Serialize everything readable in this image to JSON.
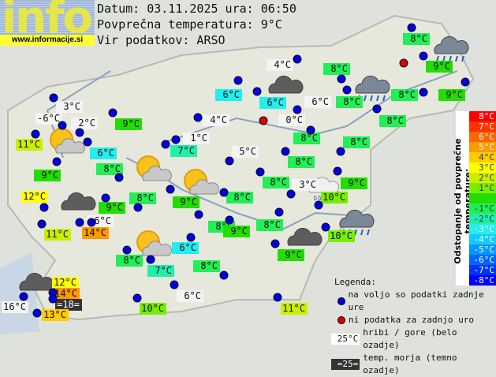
{
  "logo": {
    "text": "info",
    "url": "www.informacije.si"
  },
  "header": {
    "date_line": "Datum: 03.11.2025 ura: 06:50",
    "avg_line": "Povprečna temperatura: 9°C",
    "source_line": "Vir podatkov: ARSO"
  },
  "average_temperature": 9,
  "stations": [
    {
      "t": "3°C",
      "kind": "hill"
    },
    {
      "t": "-6°C",
      "kind": "hill"
    },
    {
      "t": "2°C",
      "kind": "hill"
    },
    {
      "t": "11°C"
    },
    {
      "t": "6°C"
    },
    {
      "t": "9°C"
    },
    {
      "t": "8°C"
    },
    {
      "t": "12°C"
    },
    {
      "t": "9°C"
    },
    {
      "t": "9°C"
    },
    {
      "t": "8°C"
    },
    {
      "t": "6°C",
      "kind": "hill"
    },
    {
      "t": "14°C"
    },
    {
      "t": "11°C"
    },
    {
      "t": "8°C"
    },
    {
      "t": "6°C"
    },
    {
      "t": "7°C"
    },
    {
      "t": "8°C"
    },
    {
      "t": "12°C"
    },
    {
      "t": "14°C"
    },
    {
      "t": "=18=",
      "kind": "sea"
    },
    {
      "t": "16°C",
      "kind": "hill"
    },
    {
      "t": "13°C"
    },
    {
      "t": "10°C"
    },
    {
      "t": "6°C",
      "kind": "hill"
    },
    {
      "t": "11°C"
    },
    {
      "t": "4°C",
      "kind": "hill"
    },
    {
      "t": "6°C"
    },
    {
      "t": "6°C"
    },
    {
      "t": "4°C",
      "kind": "hill"
    },
    {
      "t": "0°C",
      "kind": "hill",
      "missing": true
    },
    {
      "t": "6°C",
      "kind": "hill"
    },
    {
      "t": "1°C",
      "kind": "hill"
    },
    {
      "t": "7°C"
    },
    {
      "t": "5°C",
      "kind": "hill"
    },
    {
      "t": "8°C"
    },
    {
      "t": "8°C"
    },
    {
      "t": "8°C"
    },
    {
      "t": "3°C",
      "kind": "hill"
    },
    {
      "t": "9°C"
    },
    {
      "t": "8°C"
    },
    {
      "t": "8°C"
    },
    {
      "t": "9°C"
    },
    {
      "t": "8°C"
    },
    {
      "t": "9°C"
    },
    {
      "t": "10°C"
    },
    {
      "t": "9°C"
    },
    {
      "t": "10°C"
    },
    {
      "t": "8°C"
    },
    {
      "t": "8°C"
    },
    {
      "t": "8°C"
    },
    {
      "t": "8°C"
    },
    {
      "t": "8°C"
    },
    {
      "t": "9°C"
    },
    {
      "t": "9°C"
    },
    {
      "t": "8°C"
    }
  ],
  "weather_icons": [
    "partly-cloudy-icon",
    "partly-cloudy-icon",
    "partly-cloudy-icon",
    "partly-cloudy-icon",
    "cloud-icon",
    "cloud-icon",
    "cloud-icon",
    "cloud-icon",
    "rain-cloud-icon",
    "rain-cloud-icon",
    "light-rain-icon",
    "rain-cloud-icon"
  ],
  "colorbar": {
    "title": "Odstopanje od povprečne temperature:",
    "rows": [
      {
        "l": "8°C",
        "c": "#ff0000"
      },
      {
        "l": "7°C",
        "c": "#ff3300"
      },
      {
        "l": "6°C",
        "c": "#ff6600"
      },
      {
        "l": "5°C",
        "c": "#ff9900"
      },
      {
        "l": "4°C",
        "c": "#ffcc00"
      },
      {
        "l": "3°C",
        "c": "#ffff00"
      },
      {
        "l": "2°C",
        "c": "#ccee00"
      },
      {
        "l": "1°C",
        "c": "#77ee00"
      },
      {
        "l": "",
        "c": "#22dd00"
      },
      {
        "l": "-1°C",
        "c": "#22ee55"
      },
      {
        "l": "-2°C",
        "c": "#22eeaa"
      },
      {
        "l": "-3°C",
        "c": "#22eeee"
      },
      {
        "l": "-4°C",
        "c": "#11ccff"
      },
      {
        "l": "-5°C",
        "c": "#0099ff"
      },
      {
        "l": "-6°C",
        "c": "#0066ff"
      },
      {
        "l": "-7°C",
        "c": "#0033ff"
      },
      {
        "l": "-8°C",
        "c": "#0000ff"
      }
    ]
  },
  "legend": {
    "title": "Legenda:",
    "available": "na voljo so podatki zadnje ure",
    "missing": "ni podatka za zadnjo uro",
    "hill_sample": "25°C",
    "hill": "hribi / gore (belo ozadje)",
    "sea_sample": "=25=",
    "sea": "temp. morja (temno ozadje)"
  },
  "colors": {
    "dot_available": "#0000dd",
    "dot_missing": "#dd0000",
    "hill_bg": "#f4f4f4",
    "sea_bg": "#333333"
  }
}
